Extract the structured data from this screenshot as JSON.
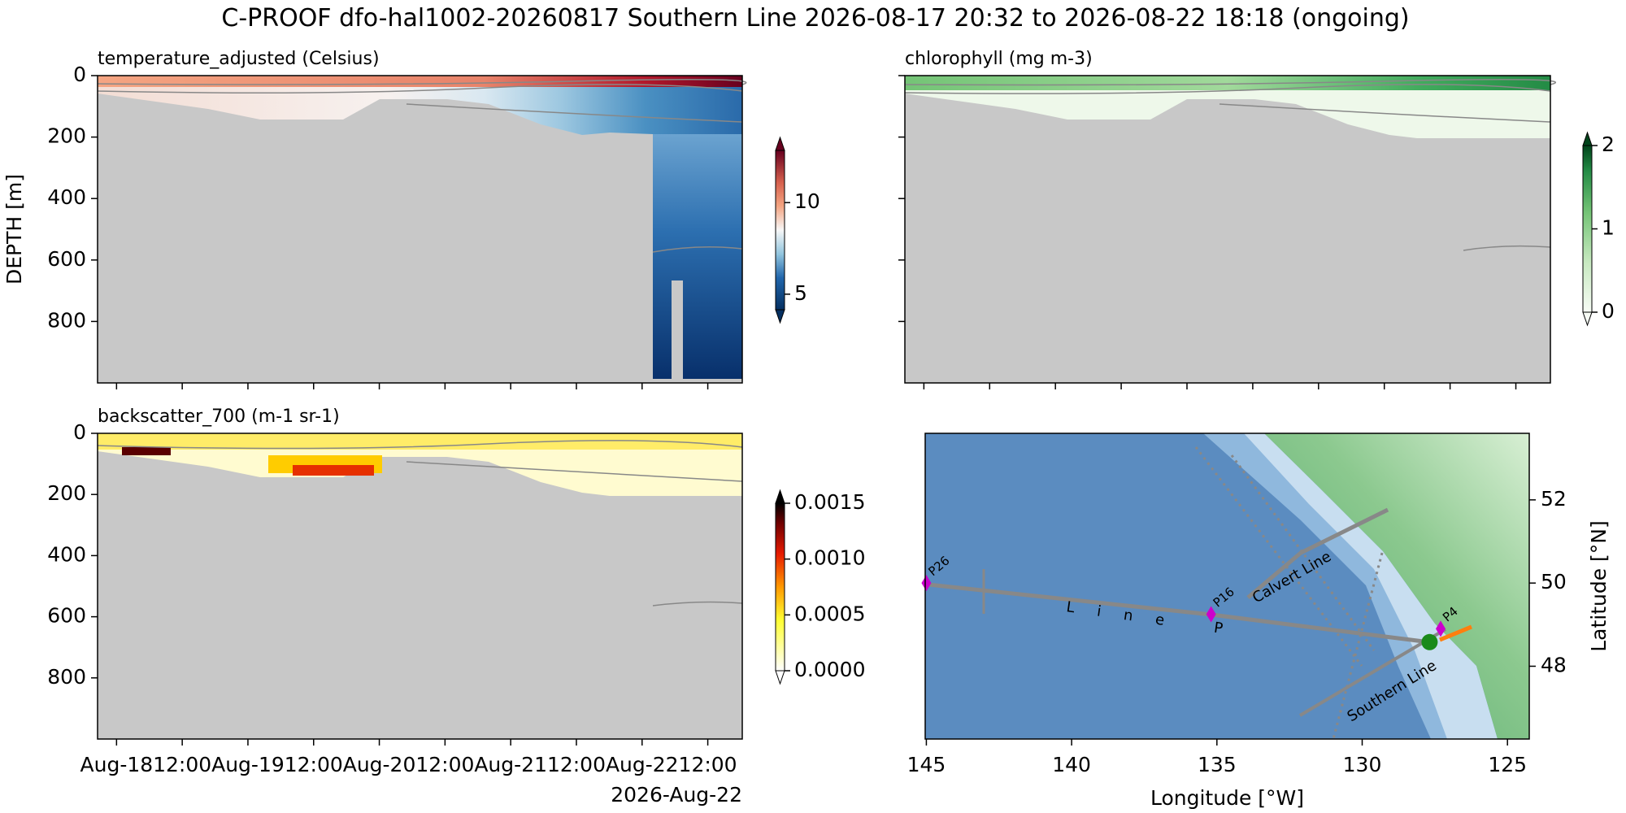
{
  "title": "C-PROOF dfo-hal1002-20260817   Southern Line   2026-08-17 20:32 to 2026-08-22 18:18 (ongoing)",
  "chart_data": [
    {
      "type": "heatmap",
      "title": "temperature_adjusted (Celsius)",
      "ylabel": "DEPTH [m]",
      "ylim": [
        1000,
        0
      ],
      "yticks": [
        0,
        200,
        400,
        600,
        800
      ],
      "colorbar": {
        "clim": [
          4.15,
          12.85
        ],
        "ticks": [
          5,
          10
        ],
        "extend": "both"
      }
    },
    {
      "type": "heatmap",
      "title": "chlorophyll (mg m-3)",
      "colorbar": {
        "clim": [
          0,
          2
        ],
        "ticks": [
          0,
          1,
          2
        ],
        "extend": "both"
      }
    },
    {
      "type": "heatmap",
      "title": "backscatter_700 (m-1 sr-1)",
      "ylim": [
        1000,
        0
      ],
      "yticks": [
        0,
        200,
        400,
        600,
        800
      ],
      "xlim": [
        "2026-08-17T20:32",
        "2026-08-22T18:18"
      ],
      "xticks": [
        {
          "value": "2026-08-18T00:00",
          "label": "Aug-18"
        },
        {
          "value": "2026-08-18T12:00",
          "label": "12:00"
        },
        {
          "value": "2026-08-19T00:00",
          "label": "Aug-19"
        },
        {
          "value": "2026-08-19T12:00",
          "label": "12:00"
        },
        {
          "value": "2026-08-20T00:00",
          "label": "Aug-20"
        },
        {
          "value": "2026-08-20T12:00",
          "label": "12:00"
        },
        {
          "value": "2026-08-21T00:00",
          "label": "Aug-21"
        },
        {
          "value": "2026-08-21T12:00",
          "label": "12:00"
        },
        {
          "value": "2026-08-22T00:00",
          "label": "Aug-22"
        },
        {
          "value": "2026-08-22T12:00",
          "label": "12:00"
        }
      ],
      "x_offset_label": "2026-Aug-22",
      "colorbar": {
        "clim": [
          0,
          0.0015
        ],
        "ticks": [
          {
            "value": 0,
            "label": "0.0000"
          },
          {
            "value": 0.0005,
            "label": "0.0005"
          },
          {
            "value": 0.001,
            "label": "0.0010"
          },
          {
            "value": 0.0015,
            "label": "0.0015"
          }
        ],
        "extend": "both"
      }
    },
    {
      "type": "map",
      "xlabel": "Longitude [°W]",
      "ylabel": "Latitude [°N]",
      "xlim": [
        145.04,
        124.25
      ],
      "ylim": [
        46.25,
        53.6
      ],
      "xticks": [
        145,
        140,
        135,
        130,
        125
      ],
      "yticks": [
        48,
        50,
        52
      ],
      "stations": [
        {
          "label": "P26",
          "lon": 145,
          "lat": 50
        },
        {
          "label": "P16",
          "lon": 135.2,
          "lat": 49.25
        },
        {
          "label": "P4",
          "lon": 127.3,
          "lat": 48.9
        }
      ],
      "position": {
        "lon": 127.68,
        "lat": 48.58
      },
      "line_labels": [
        "Line P",
        "Calvert Line",
        "Southern Line"
      ]
    }
  ]
}
